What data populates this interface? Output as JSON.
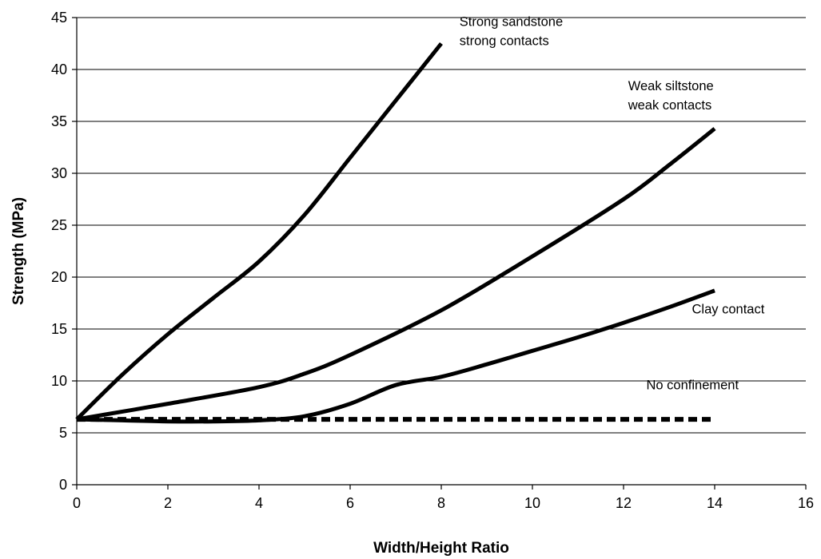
{
  "chart_data": {
    "type": "line",
    "title": "",
    "xlabel": "Width/Height Ratio",
    "ylabel": "Strength (MPa)",
    "xlim": [
      0,
      16
    ],
    "ylim": [
      0,
      45
    ],
    "x_ticks": [
      0,
      2,
      4,
      6,
      8,
      10,
      12,
      14,
      16
    ],
    "y_ticks": [
      0,
      5,
      10,
      15,
      20,
      25,
      30,
      35,
      40,
      45
    ],
    "grid": "horizontal",
    "legend": "none",
    "series": [
      {
        "name": "Strong sandstone strong contacts",
        "style": "solid",
        "color": "#000000",
        "points": [
          [
            0,
            6.3
          ],
          [
            1,
            10.6
          ],
          [
            2,
            14.5
          ],
          [
            3,
            18.0
          ],
          [
            4,
            21.5
          ],
          [
            5,
            26.0
          ],
          [
            6,
            31.5
          ],
          [
            7,
            37.0
          ],
          [
            8,
            42.5
          ]
        ]
      },
      {
        "name": "Weak siltstone weak contacts",
        "style": "solid",
        "color": "#000000",
        "points": [
          [
            0,
            6.3
          ],
          [
            2,
            7.8
          ],
          [
            4,
            9.4
          ],
          [
            5,
            10.7
          ],
          [
            6,
            12.5
          ],
          [
            8,
            16.8
          ],
          [
            10,
            22.0
          ],
          [
            12,
            27.5
          ],
          [
            13,
            30.8
          ],
          [
            14,
            34.3
          ]
        ]
      },
      {
        "name": "Clay contact",
        "style": "solid",
        "color": "#000000",
        "points": [
          [
            0,
            6.3
          ],
          [
            1,
            6.2
          ],
          [
            2,
            6.1
          ],
          [
            3,
            6.1
          ],
          [
            4,
            6.2
          ],
          [
            5,
            6.6
          ],
          [
            6,
            7.8
          ],
          [
            7,
            9.6
          ],
          [
            8,
            10.4
          ],
          [
            9,
            11.6
          ],
          [
            10,
            12.9
          ],
          [
            11,
            14.2
          ],
          [
            12,
            15.6
          ],
          [
            13,
            17.1
          ],
          [
            14,
            18.7
          ]
        ]
      },
      {
        "name": "No confinement",
        "style": "dashed",
        "color": "#000000",
        "points": [
          [
            0,
            6.3
          ],
          [
            14,
            6.3
          ]
        ]
      }
    ],
    "annotations": [
      {
        "series": 0,
        "lines": [
          "Strong sandstone",
          "strong contacts"
        ],
        "at": [
          8.4,
          44.2
        ]
      },
      {
        "series": 1,
        "lines": [
          "Weak siltstone",
          "weak contacts"
        ],
        "at": [
          12.1,
          38.0
        ]
      },
      {
        "series": 2,
        "lines": [
          "Clay contact"
        ],
        "at": [
          13.5,
          16.5
        ]
      },
      {
        "series": 3,
        "lines": [
          "No confinement"
        ],
        "at": [
          12.5,
          9.2
        ]
      }
    ]
  }
}
